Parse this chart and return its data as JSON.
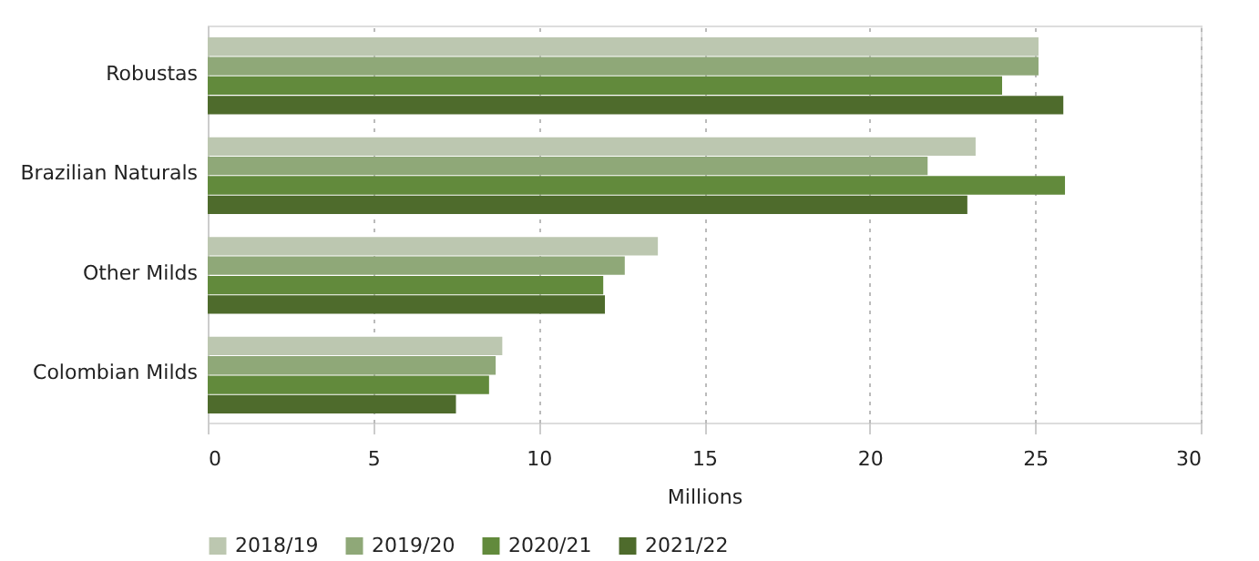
{
  "chart_data": {
    "type": "bar",
    "orientation": "horizontal",
    "categories": [
      "Robustas",
      "Brazilian Naturals",
      "Other Milds",
      "Colombian Milds"
    ],
    "series": [
      {
        "name": "2018/19",
        "color": "#bcc7b0",
        "values": [
          25.1,
          23.2,
          13.6,
          8.9
        ]
      },
      {
        "name": "2019/20",
        "color": "#8fa878",
        "values": [
          25.1,
          21.75,
          12.6,
          8.7
        ]
      },
      {
        "name": "2020/21",
        "color": "#628a3c",
        "values": [
          24.0,
          25.9,
          11.95,
          8.5
        ]
      },
      {
        "name": "2021/22",
        "color": "#4e6b2c",
        "values": [
          25.85,
          22.95,
          12.0,
          7.5
        ]
      }
    ],
    "xlabel": "Millions",
    "xlim": [
      0,
      30
    ],
    "xticks": [
      0,
      5,
      10,
      15,
      20,
      25,
      30
    ],
    "grid": "x",
    "legend": "bottom"
  }
}
